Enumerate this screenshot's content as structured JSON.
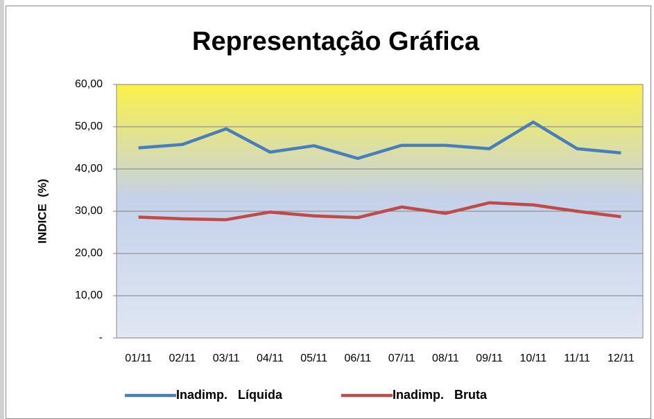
{
  "chart_data": {
    "type": "line",
    "title": "Representação Gráfica",
    "ylabel": "INDICE  (%)",
    "categories": [
      "01/11",
      "02/11",
      "03/11",
      "04/11",
      "05/11",
      "06/11",
      "07/11",
      "08/11",
      "09/11",
      "10/11",
      "11/11",
      "12/11"
    ],
    "series": [
      {
        "name": "Inadimp.   Líquida",
        "color": "#4a7ebb",
        "values": [
          45.0,
          45.8,
          49.5,
          44.0,
          45.5,
          42.5,
          45.6,
          45.6,
          44.8,
          51.1,
          44.8,
          43.8
        ]
      },
      {
        "name": "Inadimp.   Bruta",
        "color": "#be4b48",
        "values": [
          28.6,
          28.2,
          28.0,
          29.8,
          28.9,
          28.5,
          31.0,
          29.5,
          32.0,
          31.5,
          30.0,
          28.7
        ]
      }
    ],
    "ylim": [
      0,
      60
    ],
    "yticks": [
      {
        "value": 0,
        "label": "-"
      },
      {
        "value": 10,
        "label": "10,00"
      },
      {
        "value": 20,
        "label": "20,00"
      },
      {
        "value": 30,
        "label": "30,00"
      },
      {
        "value": 40,
        "label": "40,00"
      },
      {
        "value": 50,
        "label": "50,00"
      },
      {
        "value": 60,
        "label": "60,00"
      }
    ],
    "grid": true,
    "legend": "bottom"
  }
}
